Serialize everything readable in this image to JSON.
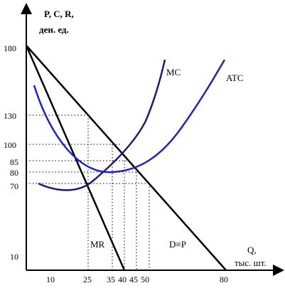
{
  "colors": {
    "axis": "#000000",
    "demand_mr": "#000000",
    "mc": "#1a1a7a",
    "atc": "#2020c8",
    "guides": "#000000"
  },
  "axes": {
    "y_title_line1": "P, C, R,",
    "y_title_line2": "ден. ед.",
    "x_title_line1": "Q,",
    "x_title_line2": "тыс. шт.",
    "y_ticks": [
      "180",
      "130",
      "100",
      "85",
      "80",
      "70",
      "10"
    ],
    "x_ticks": [
      "10",
      "25",
      "35",
      "40",
      "45",
      "50",
      "80"
    ]
  },
  "labels": {
    "mc": "MC",
    "atc": "ATC",
    "mr": "MR",
    "demand": "D≡P"
  },
  "chart_data": {
    "type": "line",
    "xlabel": "Q, тыс. шт.",
    "ylabel": "P, C, R, ден. ед.",
    "x_ticks": [
      10,
      25,
      35,
      40,
      45,
      50,
      80
    ],
    "y_ticks": [
      10,
      70,
      80,
      85,
      100,
      130,
      180
    ],
    "series": [
      {
        "name": "D≡P",
        "points": [
          [
            0,
            180
          ],
          [
            80,
            10
          ]
        ]
      },
      {
        "name": "MR",
        "points": [
          [
            0,
            180
          ],
          [
            35,
            10
          ]
        ]
      },
      {
        "name": "MC",
        "points": [
          [
            5,
            70
          ],
          [
            20,
            64
          ],
          [
            30,
            80
          ],
          [
            40,
            100
          ],
          [
            50,
            140
          ],
          [
            53,
            160
          ]
        ]
      },
      {
        "name": "ATC",
        "points": [
          [
            5,
            155
          ],
          [
            20,
            95
          ],
          [
            35,
            80
          ],
          [
            45,
            88
          ],
          [
            60,
            120
          ],
          [
            75,
            160
          ]
        ]
      }
    ],
    "guides": {
      "horizontal": [
        130,
        100,
        85,
        80,
        70
      ],
      "vertical": [
        25,
        35,
        40,
        45,
        50
      ]
    }
  }
}
